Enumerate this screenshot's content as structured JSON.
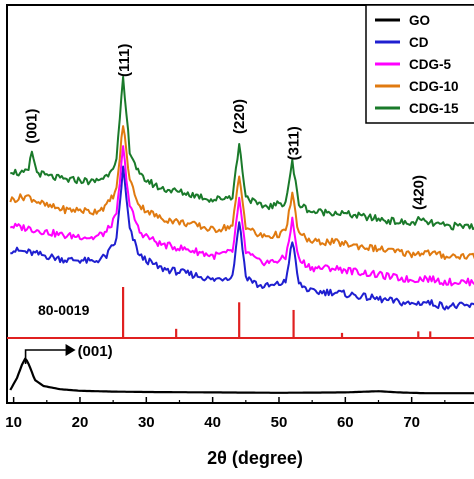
{
  "chart_data": {
    "type": "line",
    "title": "",
    "xlabel": "2θ (degree)",
    "ylabel": "",
    "xlim": [
      9,
      80
    ],
    "x_ticks": [
      10,
      20,
      30,
      40,
      50,
      60,
      70
    ],
    "grid": false,
    "legend_position": "top-right",
    "colors": {
      "GO": "#000000",
      "CD": "#1f1fd0",
      "CDG-5": "#ff00ff",
      "CDG-10": "#e07a10",
      "CDG-15": "#1a7a2a",
      "reference": "#e02020"
    },
    "series": [
      {
        "name": "GO",
        "panel": "lower",
        "x": [
          9.5,
          10.5,
          11.3,
          11.8,
          12.4,
          13.2,
          14.5,
          17,
          20,
          25,
          30,
          40,
          50,
          60,
          65,
          68,
          72,
          76,
          80
        ],
        "y": [
          0.2,
          0.5,
          0.85,
          1.0,
          0.8,
          0.45,
          0.3,
          0.22,
          0.18,
          0.16,
          0.15,
          0.14,
          0.13,
          0.14,
          0.17,
          0.14,
          0.12,
          0.12,
          0.12
        ]
      },
      {
        "name": "CD",
        "panel": "upper",
        "x": [
          9.5,
          12,
          15,
          18,
          20,
          22,
          24,
          25.5,
          26.5,
          27.5,
          29,
          32,
          35,
          38,
          40,
          43,
          44,
          45,
          47,
          49,
          51,
          52,
          53,
          55,
          58,
          62,
          66,
          70,
          72,
          75,
          80
        ],
        "y": [
          0.45,
          0.44,
          0.42,
          0.4,
          0.4,
          0.39,
          0.42,
          0.5,
          0.86,
          0.55,
          0.42,
          0.36,
          0.34,
          0.32,
          0.3,
          0.32,
          0.6,
          0.32,
          0.27,
          0.27,
          0.29,
          0.5,
          0.28,
          0.24,
          0.24,
          0.22,
          0.2,
          0.18,
          0.19,
          0.17,
          0.17
        ]
      },
      {
        "name": "CDG-5",
        "panel": "upper",
        "x": [
          9.5,
          12,
          15,
          18,
          20,
          22,
          24,
          25.5,
          26.5,
          27.5,
          29,
          32,
          35,
          38,
          40,
          43,
          44,
          45,
          47,
          49,
          51,
          52,
          53,
          55,
          58,
          62,
          66,
          70,
          72,
          75,
          80
        ],
        "y": [
          0.57,
          0.56,
          0.54,
          0.52,
          0.52,
          0.51,
          0.54,
          0.62,
          0.96,
          0.67,
          0.54,
          0.48,
          0.46,
          0.44,
          0.42,
          0.44,
          0.7,
          0.44,
          0.39,
          0.39,
          0.41,
          0.6,
          0.4,
          0.36,
          0.36,
          0.34,
          0.32,
          0.3,
          0.31,
          0.29,
          0.29
        ]
      },
      {
        "name": "CDG-10",
        "panel": "upper",
        "x": [
          9.5,
          12,
          15,
          18,
          20,
          22,
          24,
          25.5,
          26.5,
          27.5,
          29,
          32,
          35,
          38,
          40,
          43,
          44,
          45,
          47,
          49,
          51,
          52,
          53,
          55,
          58,
          62,
          66,
          70,
          72,
          75,
          80
        ],
        "y": [
          0.7,
          0.72,
          0.67,
          0.65,
          0.65,
          0.64,
          0.67,
          0.75,
          1.08,
          0.8,
          0.67,
          0.61,
          0.59,
          0.57,
          0.55,
          0.57,
          0.82,
          0.57,
          0.52,
          0.52,
          0.54,
          0.73,
          0.53,
          0.49,
          0.49,
          0.47,
          0.45,
          0.43,
          0.44,
          0.42,
          0.42
        ]
      },
      {
        "name": "CDG-15",
        "panel": "upper",
        "x": [
          9.5,
          11,
          12.2,
          12.8,
          13.4,
          15,
          18,
          20,
          22,
          24,
          25.5,
          26.5,
          27.5,
          29,
          32,
          35,
          38,
          40,
          43,
          44,
          45,
          47,
          49,
          51,
          52,
          53,
          55,
          58,
          62,
          66,
          70,
          71,
          72,
          75,
          80
        ],
        "y": [
          0.85,
          0.83,
          0.84,
          0.95,
          0.84,
          0.82,
          0.8,
          0.8,
          0.79,
          0.82,
          0.9,
          1.3,
          0.95,
          0.82,
          0.76,
          0.74,
          0.72,
          0.7,
          0.72,
          0.98,
          0.72,
          0.67,
          0.67,
          0.69,
          0.89,
          0.68,
          0.64,
          0.64,
          0.62,
          0.6,
          0.58,
          0.6,
          0.59,
          0.57,
          0.57
        ]
      }
    ],
    "reference": {
      "label": "80-0019",
      "x": [
        26.5,
        34.5,
        44.0,
        52.2,
        59.5,
        71.0,
        72.8
      ],
      "intensity": [
        1.0,
        0.18,
        0.7,
        0.55,
        0.1,
        0.13,
        0.13
      ]
    },
    "peak_labels": [
      {
        "text": "(001)",
        "x": 12.7,
        "series": "CDG-15"
      },
      {
        "text": "(111)",
        "x": 26.6,
        "series": "CDG-15"
      },
      {
        "text": "(220)",
        "x": 44.0,
        "series": "CDG-15"
      },
      {
        "text": "(311)",
        "x": 52.2,
        "series": "CDG-15"
      },
      {
        "text": "(420)",
        "x": 71.0,
        "series": "CDG-15"
      }
    ],
    "go_label": {
      "text": "(001)",
      "x": 11.8
    }
  }
}
